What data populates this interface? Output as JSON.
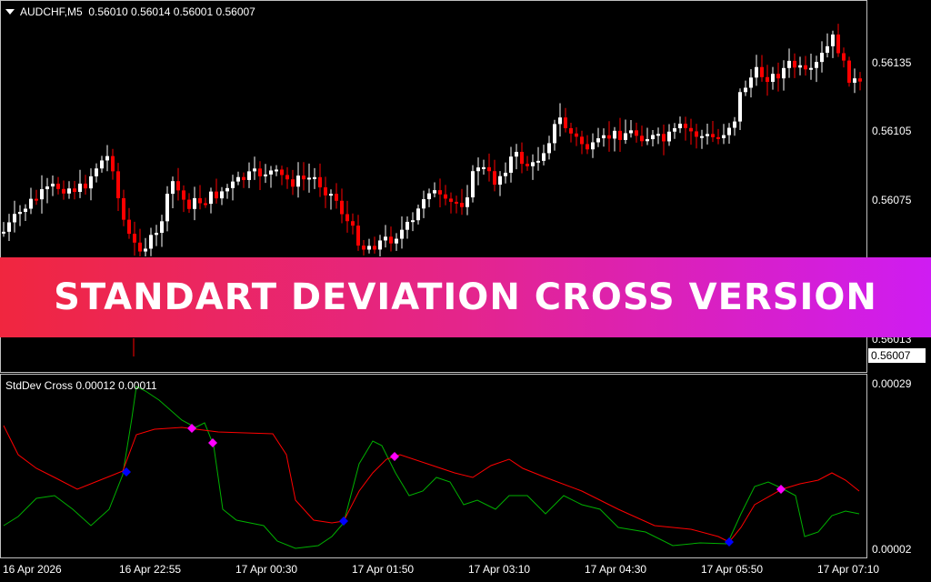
{
  "chart_header": {
    "symbol": "AUDCHF,M5",
    "ohlc": "0.56010 0.56014 0.56001 0.56007"
  },
  "indicator_header": {
    "name": "StdDev Cross",
    "values": "0.00012 0.00011"
  },
  "banner": {
    "text": "STANDART DEVIATION CROSS VERSION"
  },
  "price_axis": {
    "labels": [
      "0.56135",
      "0.56105",
      "0.56075",
      "0.56013"
    ],
    "current_price": "0.56007"
  },
  "indicator_axis": {
    "labels": [
      "0.00029",
      "0.00002"
    ]
  },
  "time_axis": {
    "labels": [
      "16 Apr 2026",
      "16 Apr 22:55",
      "17 Apr 00:30",
      "17 Apr 01:50",
      "17 Apr 03:10",
      "17 Apr 04:30",
      "17 Apr 05:50",
      "17 Apr 07:10"
    ]
  },
  "colors": {
    "background": "#000000",
    "bull_candle": "#ffffff",
    "bear_candle": "#ff0000",
    "fast_line": "#ff0000",
    "slow_line": "#00b000",
    "cross_up_marker": "#0000ff",
    "cross_down_marker": "#ff00ff",
    "frame": "#bfbfbf"
  },
  "icons": {
    "symbol_menu": "dropdown-triangle-icon"
  }
}
